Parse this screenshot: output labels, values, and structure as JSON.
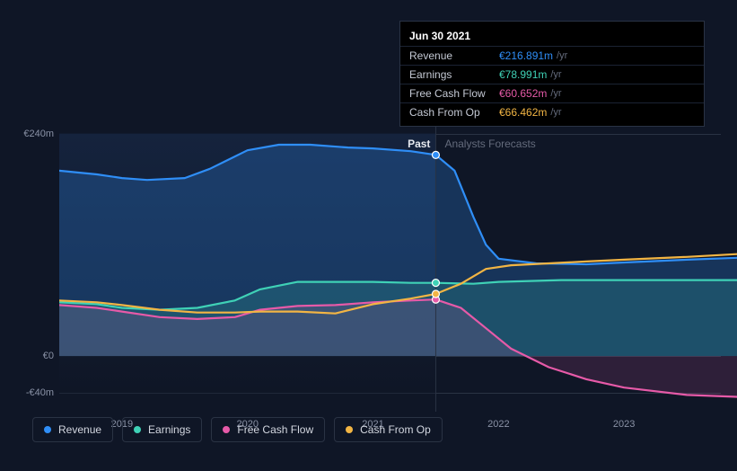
{
  "chart": {
    "type": "area-line",
    "background_color": "#0f1626",
    "grid_color": "#2a3344",
    "label_color": "#8a92a6",
    "font_size_labels": 11,
    "font_size_legend": 12,
    "xrange": [
      2018.5,
      2023.9
    ],
    "yrange": [
      -60,
      260
    ],
    "yticks": [
      {
        "value": 240,
        "label": "€240m"
      },
      {
        "value": 0,
        "label": "€0"
      },
      {
        "value": -40,
        "label": "-€40m"
      }
    ],
    "xticks": [
      {
        "value": 2019,
        "label": "2019"
      },
      {
        "value": 2020,
        "label": "2020"
      },
      {
        "value": 2021,
        "label": "2021"
      },
      {
        "value": 2022,
        "label": "2022"
      },
      {
        "value": 2023,
        "label": "2023"
      }
    ],
    "divider_x": 2021.5,
    "sections": {
      "past": {
        "label": "Past",
        "color": "#e6e9ef"
      },
      "future": {
        "label": "Analysts Forecasts",
        "color": "#646b7c"
      }
    },
    "series": [
      {
        "id": "revenue",
        "label": "Revenue",
        "color": "#2f8ef7",
        "fill_opacity": 0.25,
        "points": [
          [
            2018.5,
            200
          ],
          [
            2018.8,
            196
          ],
          [
            2019.0,
            192
          ],
          [
            2019.2,
            190
          ],
          [
            2019.5,
            192
          ],
          [
            2019.7,
            202
          ],
          [
            2020.0,
            222
          ],
          [
            2020.25,
            228
          ],
          [
            2020.5,
            228
          ],
          [
            2020.8,
            225
          ],
          [
            2021.0,
            224
          ],
          [
            2021.3,
            221
          ],
          [
            2021.5,
            217
          ],
          [
            2021.65,
            200
          ],
          [
            2021.8,
            150
          ],
          [
            2021.9,
            120
          ],
          [
            2022.0,
            105
          ],
          [
            2022.3,
            100
          ],
          [
            2022.7,
            99
          ],
          [
            2023.0,
            101
          ],
          [
            2023.5,
            104
          ],
          [
            2023.9,
            106
          ]
        ]
      },
      {
        "id": "earnings",
        "label": "Earnings",
        "color": "#3fd1b6",
        "fill_opacity": 0.18,
        "points": [
          [
            2018.5,
            58
          ],
          [
            2018.8,
            56
          ],
          [
            2019.0,
            52
          ],
          [
            2019.3,
            50
          ],
          [
            2019.6,
            52
          ],
          [
            2019.9,
            60
          ],
          [
            2020.1,
            72
          ],
          [
            2020.4,
            80
          ],
          [
            2020.7,
            80
          ],
          [
            2021.0,
            80
          ],
          [
            2021.3,
            79
          ],
          [
            2021.5,
            79
          ],
          [
            2021.8,
            78
          ],
          [
            2022.0,
            80
          ],
          [
            2022.5,
            82
          ],
          [
            2023.0,
            82
          ],
          [
            2023.5,
            82
          ],
          [
            2023.9,
            82
          ]
        ]
      },
      {
        "id": "fcf",
        "label": "Free Cash Flow",
        "color": "#e65aa8",
        "fill_opacity": 0.15,
        "points": [
          [
            2018.5,
            55
          ],
          [
            2018.8,
            52
          ],
          [
            2019.0,
            48
          ],
          [
            2019.3,
            42
          ],
          [
            2019.6,
            40
          ],
          [
            2019.9,
            42
          ],
          [
            2020.1,
            50
          ],
          [
            2020.4,
            54
          ],
          [
            2020.7,
            55
          ],
          [
            2021.0,
            58
          ],
          [
            2021.3,
            60
          ],
          [
            2021.5,
            61
          ],
          [
            2021.7,
            52
          ],
          [
            2021.9,
            30
          ],
          [
            2022.1,
            8
          ],
          [
            2022.4,
            -12
          ],
          [
            2022.7,
            -25
          ],
          [
            2023.0,
            -34
          ],
          [
            2023.5,
            -42
          ],
          [
            2023.9,
            -44
          ]
        ]
      },
      {
        "id": "cfop",
        "label": "Cash From Op",
        "color": "#f2b544",
        "fill_opacity": 0.0,
        "points": [
          [
            2018.5,
            60
          ],
          [
            2018.8,
            58
          ],
          [
            2019.0,
            55
          ],
          [
            2019.3,
            50
          ],
          [
            2019.6,
            47
          ],
          [
            2019.9,
            47
          ],
          [
            2020.1,
            48
          ],
          [
            2020.4,
            48
          ],
          [
            2020.7,
            46
          ],
          [
            2021.0,
            56
          ],
          [
            2021.3,
            62
          ],
          [
            2021.5,
            67
          ],
          [
            2021.7,
            78
          ],
          [
            2021.9,
            94
          ],
          [
            2022.1,
            98
          ],
          [
            2022.4,
            100
          ],
          [
            2022.7,
            102
          ],
          [
            2023.0,
            104
          ],
          [
            2023.5,
            107
          ],
          [
            2023.9,
            110
          ]
        ]
      }
    ],
    "markers_at_x": 2021.5
  },
  "tooltip": {
    "date": "Jun 30 2021",
    "rows": [
      {
        "label": "Revenue",
        "value": "€216.891m",
        "unit": "/yr",
        "color": "#2f8ef7"
      },
      {
        "label": "Earnings",
        "value": "€78.991m",
        "unit": "/yr",
        "color": "#3fd1b6"
      },
      {
        "label": "Free Cash Flow",
        "value": "€60.652m",
        "unit": "/yr",
        "color": "#e65aa8"
      },
      {
        "label": "Cash From Op",
        "value": "€66.462m",
        "unit": "/yr",
        "color": "#f2b544"
      }
    ]
  },
  "legend": [
    {
      "id": "revenue",
      "label": "Revenue",
      "color": "#2f8ef7"
    },
    {
      "id": "earnings",
      "label": "Earnings",
      "color": "#3fd1b6"
    },
    {
      "id": "fcf",
      "label": "Free Cash Flow",
      "color": "#e65aa8"
    },
    {
      "id": "cfop",
      "label": "Cash From Op",
      "color": "#f2b544"
    }
  ]
}
